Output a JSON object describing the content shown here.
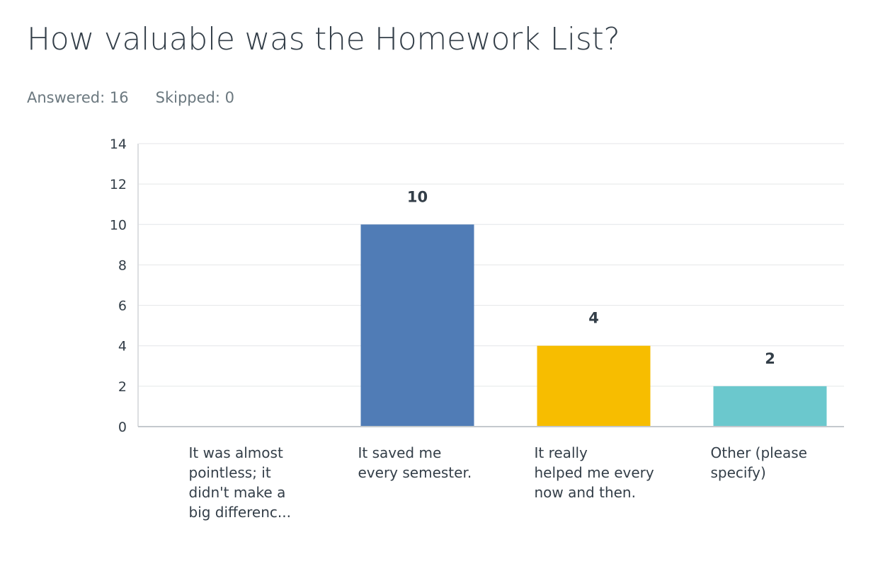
{
  "question": {
    "title": "How valuable was the Homework List?"
  },
  "stats": {
    "answered_label": "Answered:",
    "answered_value": "16",
    "skipped_label": "Skipped:",
    "skipped_value": "0"
  },
  "chart_data": {
    "type": "bar",
    "title": "",
    "xlabel": "",
    "ylabel": "",
    "ylim": [
      0,
      14
    ],
    "yticks": [
      0,
      2,
      4,
      6,
      8,
      10,
      12,
      14
    ],
    "grid": true,
    "categories": [
      "It was almost pointless; it didn't make a big differenc...",
      "It saved me every semester.",
      "It really helped me every now and then.",
      "Other (please specify)"
    ],
    "category_lines": [
      [
        "It was almost",
        "pointless; it",
        "didn't make a",
        "big differenc..."
      ],
      [
        "It saved me",
        "every semester."
      ],
      [
        "It really",
        "helped me every",
        "now and then."
      ],
      [
        "Other (please",
        "specify)"
      ]
    ],
    "values": [
      0,
      10,
      4,
      2
    ],
    "data_labels": [
      "",
      "10",
      "4",
      "2"
    ],
    "colors": [
      "#507cb6",
      "#507cb6",
      "#f7bd00",
      "#6bc8cd"
    ]
  }
}
